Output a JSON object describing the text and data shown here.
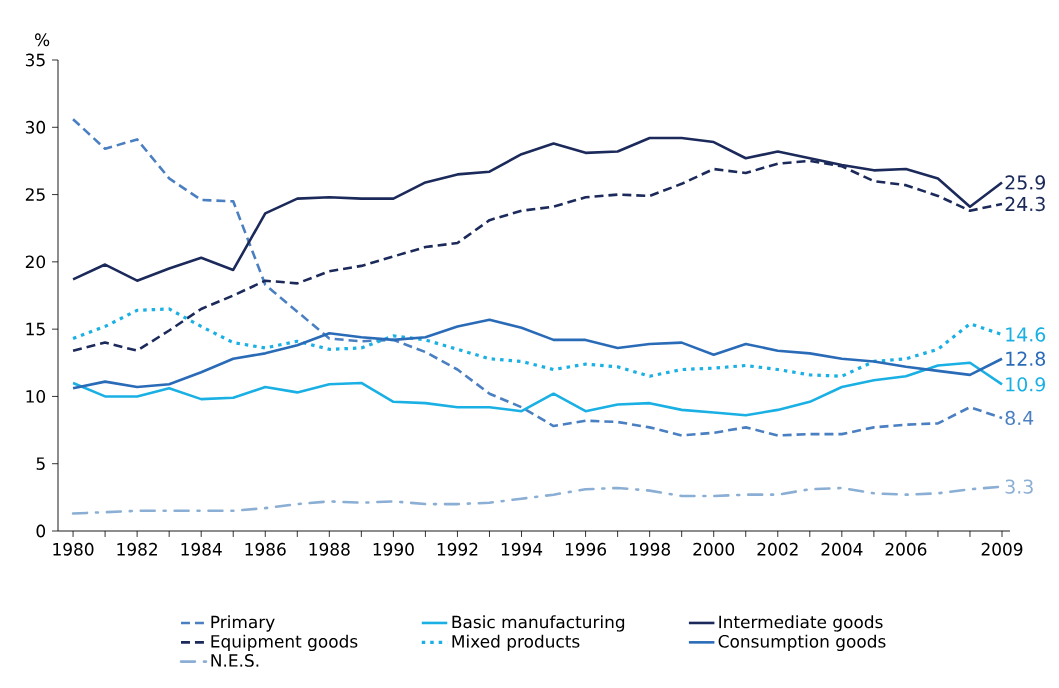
{
  "chart_data": {
    "type": "line",
    "ylabel": "%",
    "categories": [
      "1980",
      null,
      "1982",
      null,
      "1984",
      null,
      "1986",
      null,
      "1988",
      null,
      "1990",
      null,
      "1992",
      null,
      "1994",
      null,
      "1996",
      null,
      "1998",
      null,
      "2000",
      null,
      "2002",
      null,
      "2004",
      null,
      "2006",
      null,
      null,
      "2009"
    ],
    "ylim": [
      0,
      35
    ],
    "yticks": [
      0,
      5,
      10,
      15,
      20,
      25,
      30,
      35
    ],
    "grid": false,
    "legend": "bottom",
    "marker": "none",
    "series": [
      {
        "name": "Primary",
        "color": "#4a7fc1",
        "line_style": "dashed",
        "values": [
          30.6,
          28.4,
          29.1,
          26.2,
          24.6,
          24.5,
          18.3,
          16.3,
          14.3,
          14.1,
          14.2,
          13.3,
          12.0,
          10.2,
          9.2,
          7.8,
          8.2,
          8.1,
          7.7,
          7.1,
          7.3,
          7.7,
          7.1,
          7.2,
          7.2,
          7.7,
          7.9,
          8.0,
          9.2,
          8.4
        ],
        "value_labels": [
          null,
          null,
          null,
          null,
          null,
          null,
          null,
          null,
          null,
          null,
          null,
          null,
          null,
          null,
          null,
          null,
          null,
          null,
          null,
          null,
          null,
          null,
          null,
          null,
          null,
          null,
          null,
          null,
          null,
          "8.4"
        ]
      },
      {
        "name": "Basic manufacturing",
        "color": "#1ab0e4",
        "line_style": "solid",
        "values": [
          11.0,
          10.0,
          10.0,
          10.6,
          9.8,
          9.9,
          10.7,
          10.3,
          10.9,
          11.0,
          9.6,
          9.5,
          9.2,
          9.2,
          8.9,
          10.2,
          8.9,
          9.4,
          9.5,
          9.0,
          8.8,
          8.6,
          9.0,
          9.6,
          10.7,
          11.2,
          11.5,
          12.3,
          12.5,
          10.9
        ],
        "value_labels": [
          null,
          null,
          null,
          null,
          null,
          null,
          null,
          null,
          null,
          null,
          null,
          null,
          null,
          null,
          null,
          null,
          null,
          null,
          null,
          null,
          null,
          null,
          null,
          null,
          null,
          null,
          null,
          null,
          null,
          "10.9"
        ]
      },
      {
        "name": "Intermediate goods",
        "color": "#1b2a5a",
        "line_style": "solid",
        "values": [
          18.7,
          19.8,
          18.6,
          19.5,
          20.3,
          19.4,
          23.6,
          24.7,
          24.8,
          24.7,
          24.7,
          25.9,
          26.5,
          26.7,
          28.0,
          28.8,
          28.1,
          28.2,
          29.2,
          29.2,
          28.9,
          27.7,
          28.2,
          27.7,
          27.2,
          26.8,
          26.9,
          26.2,
          24.1,
          25.9
        ],
        "value_labels": [
          null,
          null,
          null,
          null,
          null,
          null,
          null,
          null,
          null,
          null,
          null,
          null,
          null,
          null,
          null,
          null,
          null,
          null,
          null,
          null,
          null,
          null,
          null,
          null,
          null,
          null,
          null,
          null,
          null,
          "25.9"
        ]
      },
      {
        "name": "Equipment goods",
        "color": "#1b2a5a",
        "line_style": "dashed",
        "values": [
          13.4,
          14.0,
          13.4,
          14.9,
          16.5,
          17.5,
          18.6,
          18.4,
          19.3,
          19.7,
          20.4,
          21.1,
          21.4,
          23.1,
          23.8,
          24.1,
          24.8,
          25.0,
          24.9,
          25.8,
          26.9,
          26.6,
          27.3,
          27.5,
          27.1,
          26.0,
          25.7,
          24.9,
          23.8,
          24.3
        ],
        "value_labels": [
          null,
          null,
          null,
          null,
          null,
          null,
          null,
          null,
          null,
          null,
          null,
          null,
          null,
          null,
          null,
          null,
          null,
          null,
          null,
          null,
          null,
          null,
          null,
          null,
          null,
          null,
          null,
          null,
          null,
          "24.3"
        ]
      },
      {
        "name": "Mixed products",
        "color": "#1ab0e4",
        "line_style": "dotted",
        "values": [
          14.3,
          15.2,
          16.4,
          16.5,
          15.2,
          14.0,
          13.6,
          14.1,
          13.5,
          13.6,
          14.5,
          14.2,
          13.5,
          12.8,
          12.6,
          12.0,
          12.4,
          12.2,
          11.5,
          12.0,
          12.1,
          12.3,
          12.0,
          11.6,
          11.5,
          12.6,
          12.8,
          13.5,
          15.4,
          14.6
        ],
        "value_labels": [
          null,
          null,
          null,
          null,
          null,
          null,
          null,
          null,
          null,
          null,
          null,
          null,
          null,
          null,
          null,
          null,
          null,
          null,
          null,
          null,
          null,
          null,
          null,
          null,
          null,
          null,
          null,
          null,
          null,
          "14.6"
        ]
      },
      {
        "name": "Consumption goods",
        "color": "#2a6bb8",
        "line_style": "solid",
        "values": [
          10.6,
          11.1,
          10.7,
          10.9,
          11.8,
          12.8,
          13.2,
          13.8,
          14.7,
          14.4,
          14.2,
          14.4,
          15.2,
          15.7,
          15.1,
          14.2,
          14.2,
          13.6,
          13.9,
          14.0,
          13.1,
          13.9,
          13.4,
          13.2,
          12.8,
          12.6,
          12.2,
          11.9,
          11.6,
          12.8
        ],
        "value_labels": [
          null,
          null,
          null,
          null,
          null,
          null,
          null,
          null,
          null,
          null,
          null,
          null,
          null,
          null,
          null,
          null,
          null,
          null,
          null,
          null,
          null,
          null,
          null,
          null,
          null,
          null,
          null,
          null,
          null,
          "12.8"
        ]
      },
      {
        "name": "N.E.S.",
        "color": "#8aaed4",
        "line_style": "dashdot",
        "values": [
          1.3,
          1.4,
          1.5,
          1.5,
          1.5,
          1.5,
          1.7,
          2.0,
          2.2,
          2.1,
          2.2,
          2.0,
          2.0,
          2.1,
          2.4,
          2.7,
          3.1,
          3.2,
          3.0,
          2.6,
          2.6,
          2.7,
          2.7,
          3.1,
          3.2,
          2.8,
          2.7,
          2.8,
          3.1,
          3.3
        ],
        "value_labels": [
          null,
          null,
          null,
          null,
          null,
          null,
          null,
          null,
          null,
          null,
          null,
          null,
          null,
          null,
          null,
          null,
          null,
          null,
          null,
          null,
          null,
          null,
          null,
          null,
          null,
          null,
          null,
          null,
          null,
          "3.3"
        ]
      }
    ]
  }
}
